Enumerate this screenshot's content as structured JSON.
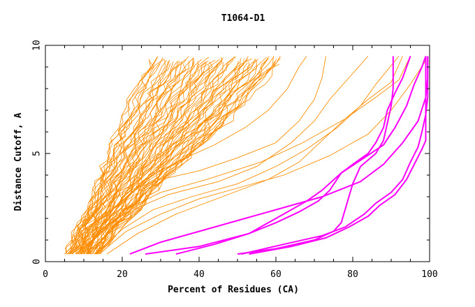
{
  "chart_data": {
    "type": "line",
    "title": "T1064-D1",
    "xlabel": "Percent of Residues (CA)",
    "ylabel": "Distance Cutoff, A",
    "xlim": [
      0,
      100
    ],
    "ylim": [
      0,
      10
    ],
    "x_ticks": [
      0,
      20,
      40,
      60,
      80,
      100
    ],
    "y_ticks": [
      0,
      5,
      10
    ],
    "grid": false,
    "legend": "none",
    "colors": {
      "bulk": "#ff8c00",
      "highlight": "#ff00ff",
      "axis": "#000000"
    },
    "bulk_bands": {
      "count": 70,
      "low": [
        [
          5.5,
          0.35
        ],
        [
          8,
          1.5
        ],
        [
          11,
          2.5
        ],
        [
          13,
          3.5
        ],
        [
          15,
          4.5
        ],
        [
          17,
          5.5
        ],
        [
          20,
          6.5
        ],
        [
          22,
          7.5
        ],
        [
          25,
          8.5
        ],
        [
          28,
          9.5
        ]
      ],
      "high": [
        [
          14,
          0.35
        ],
        [
          19,
          1.5
        ],
        [
          25,
          2.5
        ],
        [
          30,
          3.5
        ],
        [
          36,
          4.5
        ],
        [
          42,
          5.5
        ],
        [
          48,
          6.5
        ],
        [
          53,
          7.5
        ],
        [
          58,
          8.5
        ],
        [
          63,
          9.5
        ]
      ]
    },
    "series": [
      {
        "group": "bulk",
        "points": [
          [
            10,
            0.35
          ],
          [
            14,
            1.5
          ],
          [
            18,
            2.5
          ],
          [
            22,
            3.3
          ],
          [
            30,
            3.8
          ],
          [
            40,
            4.2
          ],
          [
            50,
            4.8
          ],
          [
            60,
            5.5
          ],
          [
            66,
            6.5
          ],
          [
            70,
            7.5
          ],
          [
            72,
            8.5
          ],
          [
            73,
            9.5
          ]
        ]
      },
      {
        "group": "bulk",
        "points": [
          [
            12,
            0.35
          ],
          [
            17,
            1.5
          ],
          [
            24,
            2.5
          ],
          [
            32,
            3.1
          ],
          [
            45,
            3.7
          ],
          [
            55,
            4.4
          ],
          [
            64,
            5.5
          ],
          [
            70,
            6.5
          ],
          [
            74,
            7.5
          ],
          [
            79,
            8.5
          ],
          [
            84,
            9.5
          ]
        ]
      },
      {
        "group": "bulk",
        "points": [
          [
            13,
            0.35
          ],
          [
            20,
            1.5
          ],
          [
            28,
            2.4
          ],
          [
            38,
            3.0
          ],
          [
            50,
            3.6
          ],
          [
            60,
            4.4
          ],
          [
            68,
            5.2
          ],
          [
            76,
            6.2
          ],
          [
            82,
            7.2
          ],
          [
            86,
            8.2
          ],
          [
            92,
            9.5
          ]
        ]
      },
      {
        "group": "bulk",
        "points": [
          [
            11,
            0.35
          ],
          [
            16,
            1.5
          ],
          [
            22,
            2.5
          ],
          [
            30,
            3.2
          ],
          [
            42,
            3.8
          ],
          [
            56,
            4.6
          ],
          [
            67,
            5.5
          ],
          [
            78,
            6.6
          ],
          [
            86,
            7.6
          ],
          [
            92,
            8.4
          ],
          [
            95,
            9.5
          ]
        ]
      },
      {
        "group": "bulk",
        "points": [
          [
            14,
            0.35
          ],
          [
            21,
            1.4
          ],
          [
            30,
            2.2
          ],
          [
            40,
            2.9
          ],
          [
            52,
            3.5
          ],
          [
            62,
            4.0
          ],
          [
            74,
            4.9
          ],
          [
            84,
            5.9
          ],
          [
            90,
            7.0
          ],
          [
            95,
            8.2
          ],
          [
            99,
            9.3
          ]
        ]
      },
      {
        "group": "bulk",
        "points": [
          [
            9,
            0.35
          ],
          [
            15,
            1.6
          ],
          [
            20,
            2.8
          ],
          [
            26,
            3.8
          ],
          [
            34,
            4.6
          ],
          [
            44,
            5.4
          ],
          [
            52,
            6.2
          ],
          [
            58,
            7.0
          ],
          [
            63,
            8.0
          ],
          [
            66,
            9.0
          ],
          [
            68,
            9.5
          ]
        ]
      },
      {
        "group": "bulk",
        "points": [
          [
            16,
            0.35
          ],
          [
            24,
            1.3
          ],
          [
            34,
            2.2
          ],
          [
            46,
            3.0
          ],
          [
            58,
            3.8
          ],
          [
            66,
            4.6
          ],
          [
            72,
            5.6
          ],
          [
            78,
            6.6
          ],
          [
            84,
            7.5
          ],
          [
            90,
            8.3
          ],
          [
            93,
            9.5
          ]
        ]
      },
      {
        "group": "highlight",
        "points": [
          [
            51,
            0.35
          ],
          [
            62,
            0.8
          ],
          [
            72,
            1.2
          ],
          [
            78,
            1.6
          ],
          [
            83,
            2.2
          ],
          [
            86,
            2.7
          ],
          [
            90,
            3.2
          ],
          [
            93,
            3.8
          ],
          [
            95,
            4.6
          ],
          [
            97,
            5.3
          ],
          [
            98,
            6.0
          ],
          [
            99,
            6.8
          ],
          [
            99.5,
            7.6
          ],
          [
            99.5,
            9.5
          ]
        ]
      },
      {
        "group": "highlight",
        "points": [
          [
            53,
            0.35
          ],
          [
            64,
            0.7
          ],
          [
            73,
            1.1
          ],
          [
            79,
            1.6
          ],
          [
            84,
            2.1
          ],
          [
            87,
            2.6
          ],
          [
            91,
            3.1
          ],
          [
            94,
            3.8
          ],
          [
            96,
            4.5
          ],
          [
            98,
            5.2
          ],
          [
            99,
            5.6
          ],
          [
            99,
            9.5
          ]
        ]
      },
      {
        "group": "highlight",
        "points": [
          [
            22,
            0.35
          ],
          [
            30,
            0.9
          ],
          [
            40,
            1.4
          ],
          [
            52,
            2.0
          ],
          [
            62,
            2.5
          ],
          [
            72,
            3.0
          ],
          [
            82,
            3.7
          ],
          [
            88,
            4.5
          ],
          [
            93,
            5.5
          ],
          [
            97,
            6.5
          ],
          [
            99,
            7.6
          ],
          [
            99.5,
            8.5
          ],
          [
            99.5,
            9.5
          ]
        ]
      },
      {
        "group": "highlight",
        "points": [
          [
            34,
            0.35
          ],
          [
            44,
            0.8
          ],
          [
            53,
            1.3
          ],
          [
            58,
            1.8
          ],
          [
            63,
            2.3
          ],
          [
            68,
            2.8
          ],
          [
            72,
            3.3
          ],
          [
            77,
            4.1
          ],
          [
            83,
            4.8
          ],
          [
            88,
            5.4
          ],
          [
            91,
            6.2
          ],
          [
            94,
            7.2
          ],
          [
            96,
            8.2
          ],
          [
            98,
            9.0
          ],
          [
            99,
            9.5
          ]
        ]
      },
      {
        "group": "highlight",
        "points": [
          [
            26,
            0.35
          ],
          [
            40,
            0.7
          ],
          [
            53,
            1.3
          ],
          [
            60,
            1.8
          ],
          [
            66,
            2.3
          ],
          [
            71,
            2.8
          ],
          [
            74,
            3.3
          ],
          [
            77,
            4.1
          ],
          [
            80,
            4.5
          ],
          [
            84,
            5.0
          ],
          [
            86,
            5.5
          ],
          [
            88,
            6.2
          ],
          [
            89,
            7.0
          ],
          [
            91,
            7.8
          ],
          [
            93,
            8.5
          ],
          [
            94,
            9.0
          ],
          [
            95,
            9.5
          ]
        ]
      },
      {
        "group": "highlight",
        "points": [
          [
            50,
            0.35
          ],
          [
            60,
            0.6
          ],
          [
            70,
            1.0
          ],
          [
            75,
            1.4
          ],
          [
            77,
            1.8
          ],
          [
            78,
            2.4
          ],
          [
            79,
            3.0
          ],
          [
            80,
            3.6
          ],
          [
            82,
            4.4
          ],
          [
            86,
            5.0
          ],
          [
            88,
            5.6
          ],
          [
            89,
            6.4
          ],
          [
            90,
            7.2
          ],
          [
            90.5,
            8.0
          ],
          [
            90.5,
            9.5
          ]
        ]
      }
    ]
  }
}
